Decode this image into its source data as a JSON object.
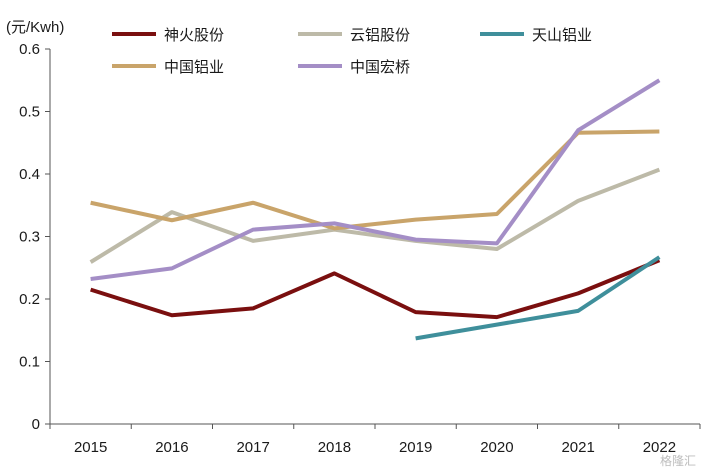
{
  "chart_data": {
    "type": "line",
    "ylabel": "(元/Kwh)",
    "x": [
      "2015",
      "2016",
      "2017",
      "2018",
      "2019",
      "2020",
      "2021",
      "2022"
    ],
    "ylim": [
      0,
      0.6
    ],
    "yticks": [
      "0",
      "0.1",
      "0.2",
      "0.3",
      "0.4",
      "0.5",
      "0.6"
    ],
    "grid": false,
    "legend_position": "top",
    "series": [
      {
        "name": "神火股份",
        "color": "#7a0f0f",
        "values": [
          0.215,
          0.174,
          0.185,
          0.241,
          0.179,
          0.171,
          0.209,
          0.262
        ]
      },
      {
        "name": "云铝股份",
        "color": "#bdbaa8",
        "values": [
          0.259,
          0.339,
          0.293,
          0.311,
          0.293,
          0.28,
          0.357,
          0.407
        ]
      },
      {
        "name": "天山铝业",
        "color": "#3f8f9b",
        "values": [
          null,
          null,
          null,
          null,
          0.137,
          null,
          0.181,
          0.267
        ]
      },
      {
        "name": "中国铝业",
        "color": "#c9a46a",
        "values": [
          0.354,
          0.326,
          0.354,
          0.313,
          0.327,
          0.336,
          0.466,
          0.468
        ]
      },
      {
        "name": "中国宏桥",
        "color": "#a48ec6",
        "values": [
          0.232,
          0.249,
          0.311,
          0.321,
          0.295,
          0.289,
          0.47,
          0.55
        ]
      }
    ]
  },
  "watermark": "格隆汇"
}
